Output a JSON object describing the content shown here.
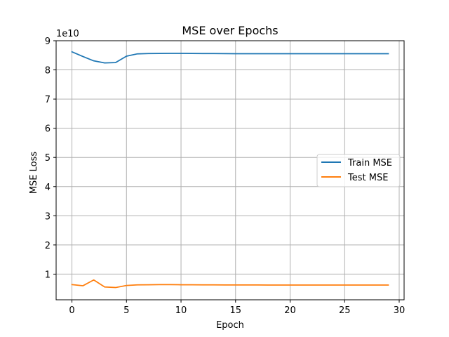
{
  "chart_data": {
    "type": "line",
    "title": "MSE over Epochs",
    "xlabel": "Epoch",
    "ylabel": "MSE Loss",
    "y_scale_label": "1e10",
    "xlim": [
      -1.45,
      30.45
    ],
    "ylim": [
      0.12,
      9.0
    ],
    "xticks": [
      0,
      5,
      10,
      15,
      20,
      25,
      30
    ],
    "yticks": [
      1,
      2,
      3,
      4,
      5,
      6,
      7,
      8,
      9
    ],
    "grid": true,
    "legend_position": "center-right",
    "x": [
      0,
      1,
      2,
      3,
      4,
      5,
      6,
      7,
      8,
      9,
      10,
      11,
      12,
      13,
      14,
      15,
      16,
      17,
      18,
      19,
      20,
      21,
      22,
      23,
      24,
      25,
      26,
      27,
      28,
      29
    ],
    "series": [
      {
        "name": "Train MSE",
        "color": "#1f77b4",
        "values": [
          8.62,
          8.46,
          8.31,
          8.24,
          8.25,
          8.47,
          8.55,
          8.56,
          8.565,
          8.567,
          8.566,
          8.565,
          8.562,
          8.56,
          8.558,
          8.556,
          8.555,
          8.555,
          8.555,
          8.554,
          8.554,
          8.554,
          8.554,
          8.554,
          8.554,
          8.554,
          8.554,
          8.554,
          8.554,
          8.554
        ]
      },
      {
        "name": "Test MSE",
        "color": "#ff7f0e",
        "values": [
          0.64,
          0.6,
          0.8,
          0.56,
          0.54,
          0.61,
          0.63,
          0.635,
          0.64,
          0.64,
          0.635,
          0.635,
          0.632,
          0.63,
          0.628,
          0.627,
          0.627,
          0.627,
          0.626,
          0.626,
          0.626,
          0.626,
          0.626,
          0.626,
          0.626,
          0.626,
          0.626,
          0.626,
          0.626,
          0.626
        ]
      }
    ]
  }
}
